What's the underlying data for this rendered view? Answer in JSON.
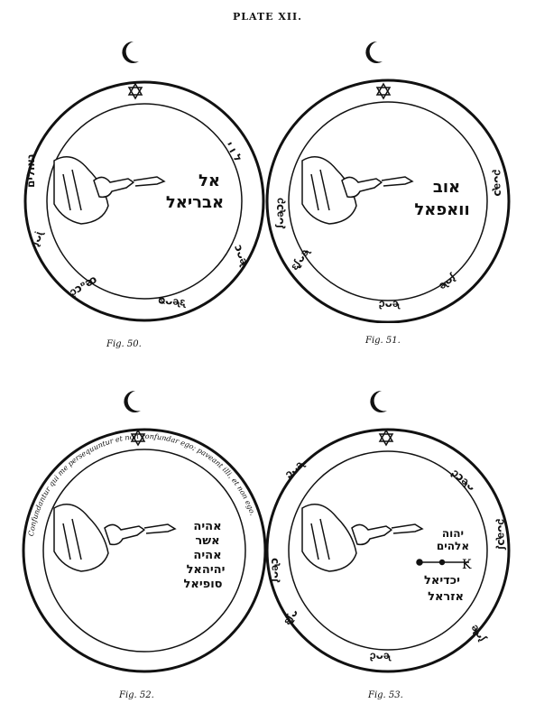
{
  "plate": {
    "title": "PLATE XII."
  },
  "figures": [
    {
      "caption": "Fig. 50.",
      "center_lines": [
        "אל",
        "אבריאל"
      ]
    },
    {
      "caption": "Fig. 51.",
      "center_lines": [
        "אוב",
        "וואפאל"
      ]
    },
    {
      "caption": "Fig. 52.",
      "center_lines": [
        "אהיה",
        "אשר",
        "אהיה",
        "יהיהאל",
        "סופיאל"
      ],
      "ring_text": "Confundantur qui me persequuntur et non confundar ego; paveant illi, et non ego."
    },
    {
      "caption": "Fig. 53.",
      "center_lines": [
        "יהוה",
        "אלהים",
        "יכדיאל",
        "אזראל"
      ],
      "letter_k": "K"
    }
  ]
}
